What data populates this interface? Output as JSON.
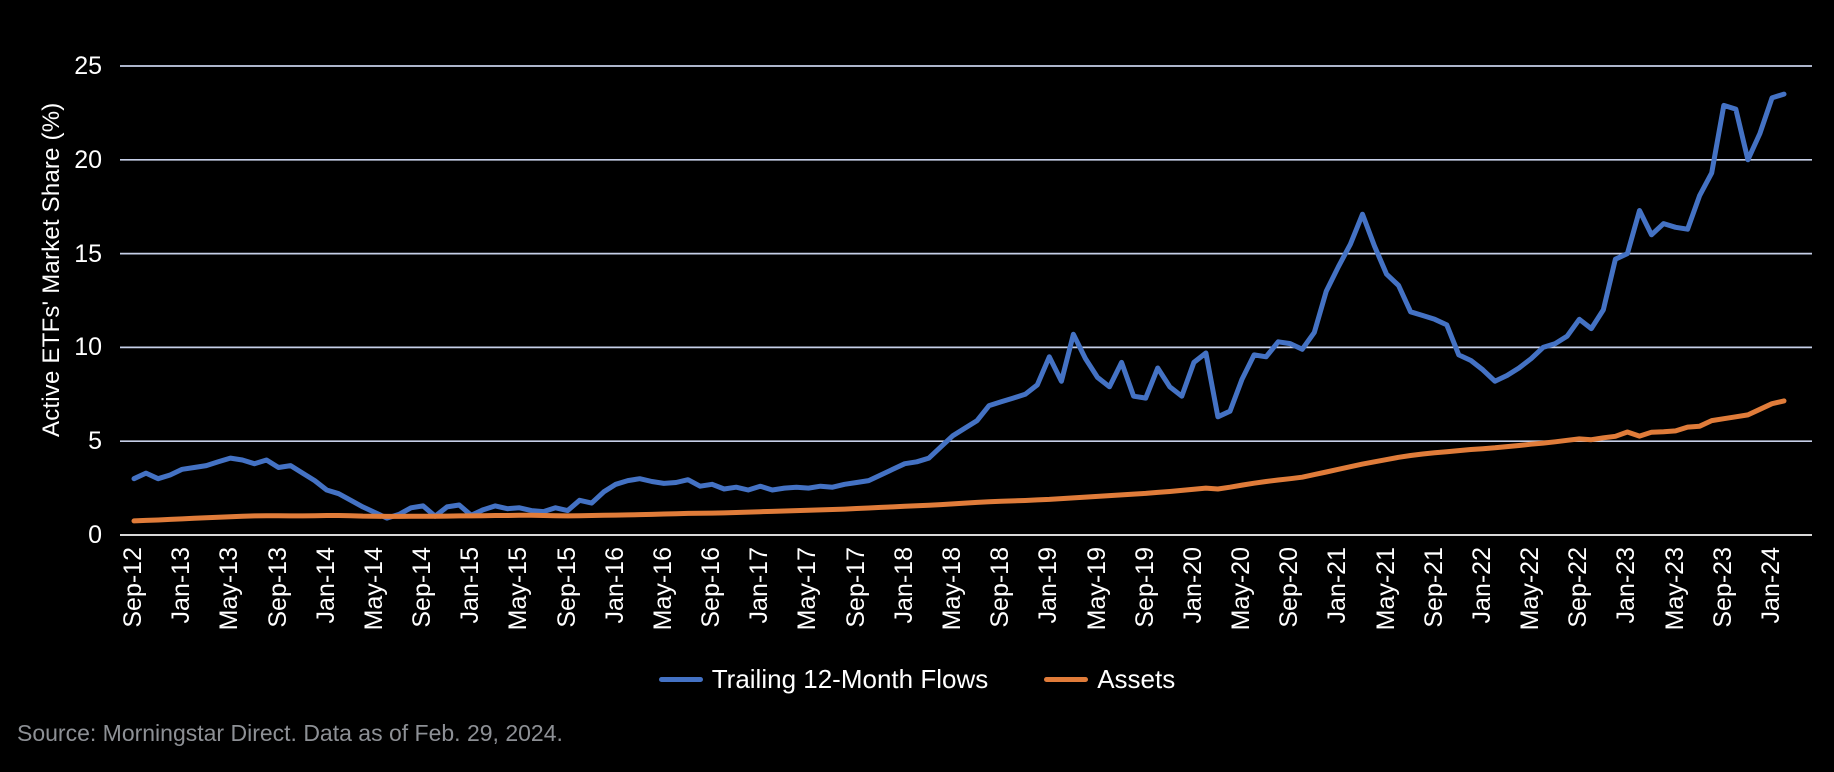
{
  "source_note": "Source: Morningstar Direct. Data as of Feb. 29, 2024.",
  "colors": {
    "background": "#000000",
    "flows_line": "#4472C4",
    "assets_line": "#E07C3A",
    "gridline": "#C6CFE8",
    "zero_axis_line": "#D9D9D9",
    "axis_text": "#FFFFFF",
    "source_text": "#8D9095"
  },
  "chart_data": {
    "type": "line",
    "title": "",
    "xlabel": "",
    "ylabel": "Active ETFs' Market Share (%)",
    "ylim": [
      0,
      25
    ],
    "yticks": [
      0,
      5,
      10,
      15,
      20,
      25
    ],
    "grid": "horizontal",
    "legend_position": "bottom-center",
    "x_frequency": "monthly",
    "x_start": "Sep-2012",
    "x_end": "Feb-2024",
    "x_tick_labels": [
      "Sep-12",
      "Jan-13",
      "May-13",
      "Sep-13",
      "Jan-14",
      "May-14",
      "Sep-14",
      "Jan-15",
      "May-15",
      "Sep-15",
      "Jan-16",
      "May-16",
      "Sep-16",
      "Jan-17",
      "May-17",
      "Sep-17",
      "Jan-18",
      "May-18",
      "Sep-18",
      "Jan-19",
      "May-19",
      "Sep-19",
      "Jan-20",
      "May-20",
      "Sep-20",
      "Jan-21",
      "May-21",
      "Sep-21",
      "Jan-22",
      "May-22",
      "Sep-22",
      "Jan-23",
      "May-23",
      "Sep-23",
      "Jan-24"
    ],
    "x_tick_every_n_months": 4,
    "series": [
      {
        "name": "Trailing 12-Month Flows",
        "color": "#4472C4",
        "values": [
          3.0,
          3.3,
          3.0,
          3.2,
          3.5,
          3.6,
          3.7,
          3.9,
          4.1,
          4.0,
          3.8,
          4.0,
          3.6,
          3.7,
          3.3,
          2.9,
          2.4,
          2.2,
          1.85,
          1.5,
          1.2,
          0.9,
          1.1,
          1.45,
          1.55,
          1.0,
          1.5,
          1.6,
          1.05,
          1.35,
          1.55,
          1.4,
          1.45,
          1.3,
          1.25,
          1.45,
          1.3,
          1.85,
          1.7,
          2.3,
          2.7,
          2.9,
          3.0,
          2.85,
          2.75,
          2.8,
          2.95,
          2.6,
          2.7,
          2.45,
          2.55,
          2.4,
          2.6,
          2.4,
          2.5,
          2.55,
          2.5,
          2.6,
          2.55,
          2.7,
          2.8,
          2.9,
          3.2,
          3.5,
          3.8,
          3.9,
          4.1,
          4.7,
          5.3,
          5.7,
          6.1,
          6.9,
          7.1,
          7.3,
          7.5,
          8.0,
          9.5,
          8.2,
          10.7,
          9.4,
          8.4,
          7.9,
          9.2,
          7.4,
          7.3,
          8.9,
          7.9,
          7.4,
          9.2,
          9.7,
          6.3,
          6.6,
          8.3,
          9.6,
          9.5,
          10.3,
          10.2,
          9.9,
          10.8,
          13.0,
          14.3,
          15.5,
          17.1,
          15.4,
          13.9,
          13.3,
          11.9,
          11.7,
          11.5,
          11.2,
          9.6,
          9.3,
          8.8,
          8.2,
          8.5,
          8.9,
          9.4,
          10.0,
          10.2,
          10.6,
          11.5,
          11.0,
          12.0,
          14.7,
          15.0,
          17.3,
          16.0,
          16.6,
          16.4,
          16.3,
          18.1,
          19.3,
          22.9,
          22.7,
          20.0,
          21.4,
          23.3,
          23.5
        ]
      },
      {
        "name": "Assets",
        "color": "#E07C3A",
        "values": [
          0.75,
          0.78,
          0.8,
          0.83,
          0.86,
          0.89,
          0.92,
          0.95,
          0.97,
          1.0,
          1.02,
          1.03,
          1.03,
          1.02,
          1.02,
          1.03,
          1.04,
          1.04,
          1.03,
          1.01,
          1.0,
          0.99,
          0.99,
          1.0,
          1.0,
          1.0,
          1.01,
          1.02,
          1.02,
          1.03,
          1.04,
          1.04,
          1.05,
          1.05,
          1.04,
          1.03,
          1.02,
          1.03,
          1.04,
          1.05,
          1.06,
          1.07,
          1.09,
          1.1,
          1.12,
          1.13,
          1.15,
          1.16,
          1.17,
          1.18,
          1.2,
          1.22,
          1.24,
          1.26,
          1.28,
          1.3,
          1.32,
          1.34,
          1.36,
          1.38,
          1.41,
          1.44,
          1.47,
          1.5,
          1.53,
          1.56,
          1.59,
          1.62,
          1.66,
          1.7,
          1.74,
          1.77,
          1.8,
          1.82,
          1.84,
          1.87,
          1.9,
          1.94,
          1.98,
          2.02,
          2.06,
          2.1,
          2.14,
          2.18,
          2.22,
          2.27,
          2.32,
          2.38,
          2.44,
          2.5,
          2.45,
          2.55,
          2.66,
          2.76,
          2.85,
          2.93,
          3.0,
          3.08,
          3.22,
          3.36,
          3.5,
          3.64,
          3.78,
          3.9,
          4.02,
          4.14,
          4.24,
          4.32,
          4.38,
          4.44,
          4.5,
          4.56,
          4.6,
          4.65,
          4.71,
          4.77,
          4.84,
          4.9,
          4.97,
          5.05,
          5.12,
          5.08,
          5.18,
          5.26,
          5.49,
          5.27,
          5.48,
          5.5,
          5.55,
          5.75,
          5.8,
          6.1,
          6.2,
          6.3,
          6.4,
          6.7,
          7.0,
          7.15
        ]
      }
    ]
  }
}
